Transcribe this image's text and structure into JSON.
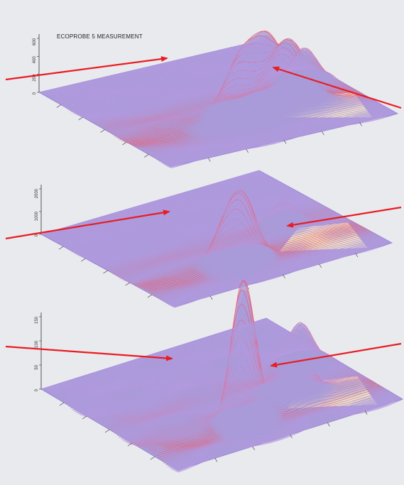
{
  "figure": {
    "title": "ECOPROBE 5 MEASUREMENT"
  },
  "colors": {
    "page_background": "#e9eaee",
    "surface": "#a99ad9",
    "surface_shade": "#8f7fcf",
    "peak_line_low": "#b99ae6",
    "peak_line_high": "#f05a6a",
    "floor_patch": "#f4efc3",
    "arrow": "#e81d23",
    "axis": "#333333"
  },
  "chart_data": [
    {
      "type": "surface",
      "panel": "top",
      "title": "",
      "zlabel": "",
      "zticks": [
        "600",
        "400",
        "200",
        "0"
      ],
      "peaks": [
        {
          "u": 0.5,
          "v": 0.3,
          "height": 1.0,
          "width": 0.07
        },
        {
          "u": 0.6,
          "v": 0.28,
          "height": 0.7,
          "width": 0.05
        },
        {
          "u": 0.72,
          "v": 0.34,
          "height": 0.92,
          "width": 0.07
        },
        {
          "u": 0.88,
          "v": 0.5,
          "height": 0.5,
          "width": 0.05
        },
        {
          "u": 0.3,
          "v": 0.25,
          "height": 0.12,
          "width": 0.05
        }
      ],
      "floor_patch": true,
      "arrows": [
        {
          "side": "left",
          "label": ""
        },
        {
          "side": "right",
          "label": ""
        }
      ]
    },
    {
      "type": "surface",
      "panel": "middle",
      "title": "",
      "zlabel": "",
      "zticks": [
        "2000",
        "1000",
        "0"
      ],
      "peaks": [
        {
          "u": 0.4,
          "v": 0.22,
          "height": 1.0,
          "width": 0.06
        },
        {
          "u": 0.48,
          "v": 0.25,
          "height": 0.78,
          "width": 0.05
        },
        {
          "u": 0.78,
          "v": 0.45,
          "height": 0.42,
          "width": 0.05
        }
      ],
      "floor_patch": true,
      "arrows": [
        {
          "side": "left",
          "label": ""
        },
        {
          "side": "right",
          "label": ""
        }
      ]
    },
    {
      "type": "surface",
      "panel": "bottom",
      "title": "",
      "zlabel": "",
      "zticks": [
        "150",
        "100",
        "50",
        "0"
      ],
      "peaks": [
        {
          "u": 0.4,
          "v": 0.18,
          "height": 1.0,
          "width": 0.045
        },
        {
          "u": 0.45,
          "v": 0.24,
          "height": 0.55,
          "width": 0.05
        },
        {
          "u": 0.7,
          "v": 0.3,
          "height": 0.45,
          "width": 0.06
        },
        {
          "u": 0.86,
          "v": 0.52,
          "height": 0.35,
          "width": 0.05
        }
      ],
      "floor_patch": true,
      "arrows": [
        {
          "side": "left",
          "label": ""
        },
        {
          "side": "right",
          "label": ""
        }
      ]
    }
  ]
}
